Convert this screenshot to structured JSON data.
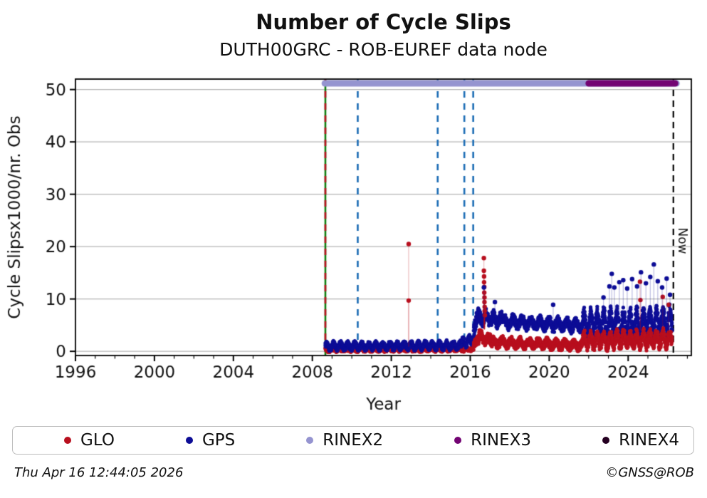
{
  "header": {
    "title": "Number of Cycle Slips",
    "subtitle": "DUTH00GRC - ROB-EUREF data node"
  },
  "footer": {
    "timestamp": "Thu Apr 16 12:44:05 2026",
    "credit": "©GNSS@ROB"
  },
  "legend": {
    "items": [
      {
        "label": "GLO",
        "color": "#b80f1e"
      },
      {
        "label": "GPS",
        "color": "#0d0d96"
      },
      {
        "label": "RINEX2",
        "color": "#9594d0"
      },
      {
        "label": "RINEX3",
        "color": "#730473"
      },
      {
        "label": "RINEX4",
        "color": "#250021"
      }
    ]
  },
  "chart_data": {
    "type": "scatter",
    "title": "Number of Cycle Slips",
    "subtitle": "DUTH00GRC - ROB-EUREF data node",
    "xlabel": "Year",
    "ylabel": "Cycle Slipsx1000/nr. Obs",
    "xlim": [
      1996,
      2027.2
    ],
    "ylim": [
      -0.8,
      52
    ],
    "xticks": [
      1996,
      2000,
      2004,
      2008,
      2012,
      2016,
      2020,
      2024
    ],
    "yticks": [
      0,
      10,
      20,
      30,
      40,
      50
    ],
    "grid": "horizontal",
    "grid_color": "#b4b4b4",
    "now_line": {
      "x": 2026.29,
      "label": "Now",
      "color": "#000000",
      "style": "dashed"
    },
    "spans": [
      {
        "name": "RINEX2",
        "from": 2008.63,
        "to": 2026.45,
        "color": "#9594d0"
      },
      {
        "name": "RINEX3",
        "from": 2022.0,
        "to": 2026.38,
        "color": "#730473"
      }
    ],
    "vlines": [
      {
        "x": 2008.66,
        "color": "#0e7d0e",
        "style": "solid"
      },
      {
        "x": 2008.66,
        "color": "#b80f1e",
        "style": "dashed"
      },
      {
        "x": 2010.3,
        "color": "#1b6cb5",
        "style": "dashed"
      },
      {
        "x": 2014.35,
        "color": "#1b6cb5",
        "style": "dashed"
      },
      {
        "x": 2015.7,
        "color": "#1b6cb5",
        "style": "dashed"
      },
      {
        "x": 2016.15,
        "color": "#1b6cb5",
        "style": "dashed"
      }
    ],
    "series": [
      {
        "name": "GLO",
        "color": "#b80f1e",
        "segments": [
          {
            "from": 2008.66,
            "to": 2016.12,
            "b0": 0.32,
            "b1": 0.42,
            "w": 0.2,
            "f": 2.8,
            "ph": 1.5,
            "n": 0.38,
            "min": -0.18,
            "z": 0
          },
          {
            "from": 2016.17,
            "to": 2016.45,
            "b0": 1.0,
            "b1": 2.4,
            "w": 0.3,
            "f": 2.0,
            "ph": 0.0,
            "n": 0.9,
            "min": 0.1,
            "z": 1
          },
          {
            "from": 2016.45,
            "to": 2017.1,
            "b0": 2.7,
            "b1": 2.1,
            "w": 0.5,
            "f": 2.4,
            "ph": 0.5,
            "n": 1.05,
            "min": 0.5,
            "z": 1
          },
          {
            "from": 2017.1,
            "to": 2021.7,
            "b0": 1.75,
            "b1": 1.15,
            "w": 0.5,
            "f": 2.2,
            "ph": 0.7,
            "n": 0.8,
            "min": -0.05,
            "z": 1
          },
          {
            "from": 2021.7,
            "to": 2026.23,
            "b0": 2.0,
            "b1": 2.4,
            "w": 1.05,
            "f": 3.0,
            "ph": 0.3,
            "n": 1.1,
            "min": 0.05,
            "z": 1
          }
        ],
        "outliers": [
          [
            2012.88,
            20.5,
            0.9
          ],
          [
            2012.88,
            9.7,
            0.9
          ],
          [
            2016.69,
            17.8,
            4.2
          ],
          [
            2016.69,
            15.4,
            4.2
          ],
          [
            2016.7,
            14.3,
            4.2
          ],
          [
            2016.7,
            13.2,
            4.2
          ],
          [
            2016.71,
            12.3,
            4.2
          ],
          [
            2016.71,
            11.2,
            4.2
          ],
          [
            2016.72,
            10.3,
            4.2
          ],
          [
            2016.72,
            9.4,
            4.2
          ],
          [
            2016.73,
            8.5,
            4.2
          ],
          [
            2016.73,
            7.7,
            4.2
          ],
          [
            2016.74,
            6.9,
            4.2
          ],
          [
            2024.6,
            13.3,
            4.0
          ],
          [
            2024.62,
            9.8,
            4.0
          ],
          [
            2025.75,
            10.4,
            3.6
          ],
          [
            2026.05,
            8.9,
            3.4
          ]
        ]
      },
      {
        "name": "GPS",
        "color": "#0d0d96",
        "segments": [
          {
            "from": 2008.66,
            "to": 2015.55,
            "b0": 0.95,
            "b1": 1.15,
            "w": 0.5,
            "f": 2.8,
            "ph": 0.5,
            "n": 0.55,
            "min": 0.05,
            "z": 0
          },
          {
            "from": 2015.55,
            "to": 2016.12,
            "b0": 1.5,
            "b1": 2.3,
            "w": 0.55,
            "f": 3.2,
            "ph": 0.0,
            "n": 0.7,
            "min": 0.2,
            "z": 0
          },
          {
            "from": 2016.17,
            "to": 2016.38,
            "b0": 3.6,
            "b1": 6.6,
            "w": 0.4,
            "f": 2.0,
            "ph": 0.0,
            "n": 1.4,
            "min": 1.2,
            "z": 0
          },
          {
            "from": 2016.38,
            "to": 2017.6,
            "b0": 6.5,
            "b1": 6.0,
            "w": 0.7,
            "f": 2.6,
            "ph": 1.0,
            "n": 1.1,
            "min": 3.0,
            "z": 0
          },
          {
            "from": 2017.6,
            "to": 2021.7,
            "b0": 5.7,
            "b1": 4.9,
            "w": 0.7,
            "f": 2.2,
            "ph": 0.0,
            "n": 0.95,
            "min": 2.6,
            "z": 0
          },
          {
            "from": 2021.7,
            "to": 2026.23,
            "b0": 5.2,
            "b1": 5.7,
            "w": 2.0,
            "f": 3.0,
            "ph": 0.3,
            "n": 1.35,
            "min": 1.6,
            "z": 0
          }
        ],
        "outliers": [
          [
            2016.69,
            12.2,
            6.2
          ],
          [
            2017.25,
            9.4,
            6.2
          ],
          [
            2020.2,
            8.9,
            5.2
          ],
          [
            2022.75,
            10.3,
            6.4
          ],
          [
            2023.05,
            12.4,
            7.2
          ],
          [
            2023.17,
            14.8,
            7.8
          ],
          [
            2023.3,
            12.2,
            7.2
          ],
          [
            2023.55,
            13.2,
            7.0
          ],
          [
            2023.75,
            13.6,
            7.6
          ],
          [
            2023.95,
            12.0,
            7.0
          ],
          [
            2024.2,
            13.8,
            7.8
          ],
          [
            2024.45,
            12.4,
            7.6
          ],
          [
            2024.65,
            15.1,
            8.2
          ],
          [
            2024.9,
            13.0,
            7.4
          ],
          [
            2025.12,
            14.2,
            7.8
          ],
          [
            2025.3,
            16.6,
            8.4
          ],
          [
            2025.5,
            13.4,
            7.8
          ],
          [
            2025.72,
            12.2,
            7.4
          ],
          [
            2025.95,
            13.9,
            7.8
          ],
          [
            2026.12,
            10.8,
            6.8
          ]
        ]
      }
    ]
  }
}
